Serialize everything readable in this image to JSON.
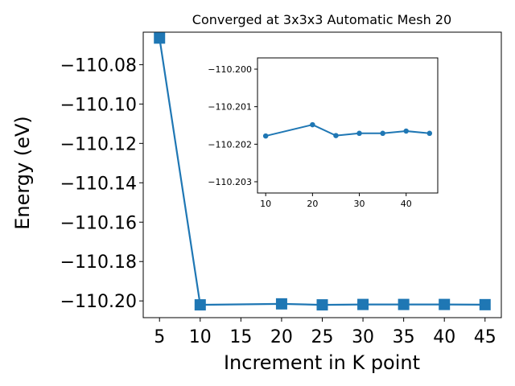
{
  "chart_data": [
    {
      "type": "line",
      "title": "Converged at 3x3x3 Automatic Mesh 20",
      "xlabel": "Increment in K point",
      "ylabel": "Energy (eV)",
      "xticks": [
        5,
        10,
        15,
        20,
        25,
        30,
        35,
        40,
        45
      ],
      "xtick_labels": [
        "5",
        "10",
        "15",
        "20",
        "25",
        "30",
        "35",
        "40",
        "45"
      ],
      "yticks": [
        -110.08,
        -110.1,
        -110.12,
        -110.14,
        -110.16,
        -110.18,
        -110.2
      ],
      "ytick_labels": [
        "−110.08",
        "−110.10",
        "−110.12",
        "−110.14",
        "−110.16",
        "−110.18",
        "−110.20"
      ],
      "xlim": [
        3.0,
        47.0
      ],
      "ylim": [
        -110.2085,
        -110.0635
      ],
      "marker": "square",
      "color": "#1f77b4",
      "series": [
        {
          "x": [
            5,
            10,
            20,
            25,
            30,
            35,
            40,
            45
          ],
          "y": [
            -110.0665,
            -110.202,
            -110.2015,
            -110.202,
            -110.2018,
            -110.2018,
            -110.2018,
            -110.2019
          ]
        }
      ]
    },
    {
      "type": "line",
      "title": "",
      "xticks": [
        10,
        20,
        30,
        40
      ],
      "xtick_labels": [
        "10",
        "20",
        "30",
        "40"
      ],
      "yticks": [
        -110.203,
        -110.202,
        -110.201,
        -110.2
      ],
      "ytick_labels": [
        "−110.203",
        "−110.202",
        "−110.201",
        "−110.200"
      ],
      "xlim": [
        8.25,
        46.75
      ],
      "ylim": [
        -110.2033,
        -110.1997
      ],
      "marker": "circle",
      "color": "#1f77b4",
      "series": [
        {
          "x": [
            10,
            20,
            25,
            30,
            35,
            40,
            45
          ],
          "y": [
            -110.20178,
            -110.20148,
            -110.20177,
            -110.20171,
            -110.20171,
            -110.20165,
            -110.20171
          ]
        }
      ]
    }
  ]
}
